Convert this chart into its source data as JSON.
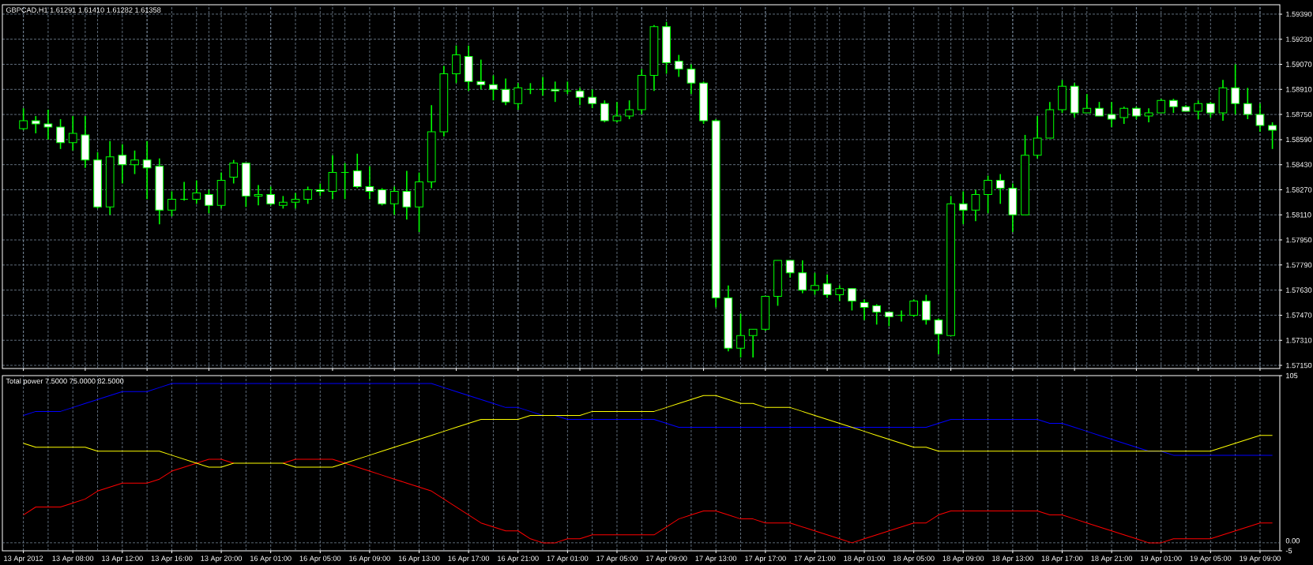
{
  "chart_data": [
    {
      "type": "candlestick",
      "title": "GBPCAD,H1 1.61291 1.61410 1.61282 1.61358",
      "color": "#00ff00",
      "grid": true,
      "categories": [
        null,
        null,
        null,
        null,
        null,
        null,
        null,
        null,
        null,
        null,
        null,
        null,
        null,
        null,
        null,
        null,
        null,
        null,
        null,
        null,
        null,
        null,
        null,
        null,
        null,
        null,
        null,
        null,
        null,
        null,
        null,
        null,
        null,
        null,
        null,
        null,
        null,
        null,
        null,
        null,
        null,
        null,
        null,
        null,
        null,
        null,
        null,
        null,
        null,
        null,
        null,
        null,
        null,
        null,
        null,
        null,
        null,
        null,
        null,
        null,
        null,
        null,
        null,
        null,
        null,
        null,
        null,
        null,
        null,
        null,
        null,
        null,
        null,
        null,
        null,
        null,
        null,
        null,
        null,
        null,
        null,
        null,
        null,
        null,
        null,
        null,
        null,
        null,
        null,
        null,
        null,
        null,
        null,
        null,
        null,
        null,
        null,
        null,
        null,
        null,
        null,
        null
      ],
      "ohlc": [
        [
          1.5866,
          1.5879,
          1.5865,
          1.5871
        ],
        [
          1.5871,
          1.5874,
          1.5863,
          1.5869
        ],
        [
          1.5869,
          1.5878,
          1.5859,
          1.5867
        ],
        [
          1.5867,
          1.5872,
          1.5853,
          1.5857
        ],
        [
          1.5857,
          1.5874,
          1.5852,
          1.5863
        ],
        [
          1.5862,
          1.5874,
          1.5841,
          1.5846
        ],
        [
          1.5846,
          1.5851,
          1.5815,
          1.5816
        ],
        [
          1.5816,
          1.5858,
          1.5811,
          1.5848
        ],
        [
          1.5849,
          1.5856,
          1.5831,
          1.5843
        ],
        [
          1.5843,
          1.5852,
          1.5837,
          1.5846
        ],
        [
          1.5846,
          1.5858,
          1.5821,
          1.5841
        ],
        [
          1.5842,
          1.5847,
          1.5805,
          1.5814
        ],
        [
          1.5814,
          1.5826,
          1.581,
          1.5821
        ],
        [
          1.5821,
          1.5832,
          1.582,
          1.5821
        ],
        [
          1.5821,
          1.5833,
          1.5818,
          1.5825
        ],
        [
          1.5824,
          1.5827,
          1.5812,
          1.5817
        ],
        [
          1.5817,
          1.5838,
          1.5815,
          1.5833
        ],
        [
          1.5835,
          1.5846,
          1.5831,
          1.5844
        ],
        [
          1.5844,
          1.5844,
          1.5816,
          1.5823
        ],
        [
          1.5823,
          1.583,
          1.5817,
          1.5824
        ],
        [
          1.5824,
          1.5829,
          1.5817,
          1.5818
        ],
        [
          1.5817,
          1.5823,
          1.5815,
          1.5819
        ],
        [
          1.5819,
          1.5825,
          1.5815,
          1.5821
        ],
        [
          1.5821,
          1.5829,
          1.5818,
          1.5827
        ],
        [
          1.5827,
          1.5831,
          1.5823,
          1.5826
        ],
        [
          1.5826,
          1.5849,
          1.5821,
          1.5838
        ],
        [
          1.5838,
          1.5844,
          1.5821,
          1.5838
        ],
        [
          1.5839,
          1.585,
          1.5828,
          1.5829
        ],
        [
          1.5829,
          1.5842,
          1.5821,
          1.5826
        ],
        [
          1.5827,
          1.5828,
          1.5817,
          1.5818
        ],
        [
          1.5818,
          1.5829,
          1.5811,
          1.5826
        ],
        [
          1.5826,
          1.5839,
          1.5808,
          1.5816
        ],
        [
          1.5816,
          1.5838,
          1.58,
          1.5832
        ],
        [
          1.5832,
          1.5881,
          1.5828,
          1.5864
        ],
        [
          1.5864,
          1.5906,
          1.5861,
          1.5901
        ],
        [
          1.5901,
          1.5919,
          1.5895,
          1.5913
        ],
        [
          1.5912,
          1.5919,
          1.589,
          1.5896
        ],
        [
          1.5896,
          1.591,
          1.5891,
          1.5894
        ],
        [
          1.5894,
          1.59,
          1.5884,
          1.5891
        ],
        [
          1.5891,
          1.5898,
          1.5881,
          1.5883
        ],
        [
          1.5882,
          1.5895,
          1.5878,
          1.5892
        ],
        [
          1.5891,
          1.5895,
          1.5888,
          1.5891
        ],
        [
          1.5891,
          1.5899,
          1.5887,
          1.5891
        ],
        [
          1.5891,
          1.5896,
          1.5883,
          1.589
        ],
        [
          1.589,
          1.5896,
          1.5888,
          1.589
        ],
        [
          1.589,
          1.5892,
          1.5881,
          1.5886
        ],
        [
          1.5886,
          1.5891,
          1.5879,
          1.5882
        ],
        [
          1.5882,
          1.5884,
          1.587,
          1.5871
        ],
        [
          1.5871,
          1.5883,
          1.587,
          1.5874
        ],
        [
          1.5874,
          1.5884,
          1.5872,
          1.5878
        ],
        [
          1.5878,
          1.5904,
          1.5875,
          1.59
        ],
        [
          1.59,
          1.5932,
          1.589,
          1.5931
        ],
        [
          1.5931,
          1.5934,
          1.5901,
          1.5908
        ],
        [
          1.5909,
          1.5913,
          1.5899,
          1.5904
        ],
        [
          1.5904,
          1.5907,
          1.5888,
          1.5895
        ],
        [
          1.5895,
          1.5896,
          1.5869,
          1.5871
        ],
        [
          1.5871,
          1.5872,
          1.5752,
          1.5758
        ],
        [
          1.5758,
          1.5766,
          1.5724,
          1.5726
        ],
        [
          1.5726,
          1.5748,
          1.572,
          1.5734
        ],
        [
          1.5734,
          1.5738,
          1.572,
          1.5738
        ],
        [
          1.5738,
          1.5759,
          1.5737,
          1.5759
        ],
        [
          1.5759,
          1.5782,
          1.5753,
          1.5782
        ],
        [
          1.5782,
          1.5782,
          1.5771,
          1.5774
        ],
        [
          1.5774,
          1.5782,
          1.5761,
          1.5763
        ],
        [
          1.5763,
          1.5774,
          1.576,
          1.5766
        ],
        [
          1.5767,
          1.5773,
          1.5758,
          1.576
        ],
        [
          1.576,
          1.5766,
          1.5756,
          1.5764
        ],
        [
          1.5764,
          1.5764,
          1.575,
          1.5756
        ],
        [
          1.5755,
          1.5757,
          1.5744,
          1.5752
        ],
        [
          1.5753,
          1.5754,
          1.5741,
          1.5749
        ],
        [
          1.5749,
          1.5749,
          1.574,
          1.5746
        ],
        [
          1.5747,
          1.575,
          1.5743,
          1.5747
        ],
        [
          1.5747,
          1.5757,
          1.5746,
          1.5756
        ],
        [
          1.5756,
          1.576,
          1.5741,
          1.5744
        ],
        [
          1.5744,
          1.5745,
          1.5722,
          1.5735
        ],
        [
          1.5734,
          1.5823,
          1.5734,
          1.5818
        ],
        [
          1.5818,
          1.5826,
          1.5805,
          1.5814
        ],
        [
          1.5814,
          1.5827,
          1.5807,
          1.5824
        ],
        [
          1.5824,
          1.5836,
          1.5812,
          1.5833
        ],
        [
          1.5833,
          1.5837,
          1.5818,
          1.5828
        ],
        [
          1.5828,
          1.5831,
          1.58,
          1.5811
        ],
        [
          1.5811,
          1.5862,
          1.5811,
          1.5849
        ],
        [
          1.5849,
          1.5874,
          1.5847,
          1.586
        ],
        [
          1.586,
          1.5883,
          1.586,
          1.5878
        ],
        [
          1.5878,
          1.5897,
          1.5876,
          1.5893
        ],
        [
          1.5893,
          1.5895,
          1.5873,
          1.5876
        ],
        [
          1.5876,
          1.5888,
          1.5876,
          1.5879
        ],
        [
          1.5879,
          1.5883,
          1.5874,
          1.5874
        ],
        [
          1.5875,
          1.5883,
          1.5867,
          1.5872
        ],
        [
          1.5873,
          1.588,
          1.5869,
          1.5879
        ],
        [
          1.5879,
          1.588,
          1.5872,
          1.5874
        ],
        [
          1.5874,
          1.5879,
          1.587,
          1.5876
        ],
        [
          1.5876,
          1.5885,
          1.5876,
          1.5884
        ],
        [
          1.5884,
          1.5885,
          1.5876,
          1.588
        ],
        [
          1.588,
          1.5881,
          1.5877,
          1.5877
        ],
        [
          1.5877,
          1.5884,
          1.5872,
          1.5882
        ],
        [
          1.5882,
          1.5883,
          1.5873,
          1.5876
        ],
        [
          1.5876,
          1.5897,
          1.5871,
          1.5892
        ],
        [
          1.5892,
          1.5907,
          1.5875,
          1.5882
        ],
        [
          1.5882,
          1.5892,
          1.5872,
          1.5875
        ],
        [
          1.5875,
          1.5882,
          1.5864,
          1.5868
        ],
        [
          1.5868,
          1.587,
          1.5853,
          1.5865
        ]
      ],
      "ylim": [
        1.5713,
        1.5945
      ],
      "yticks": [
        {
          "value": 1.5715,
          "label": "1.57150"
        },
        {
          "value": 1.5731,
          "label": "1.57310"
        },
        {
          "value": 1.5747,
          "label": "1.57470"
        },
        {
          "value": 1.5763,
          "label": "1.57630"
        },
        {
          "value": 1.5779,
          "label": "1.57790"
        },
        {
          "value": 1.5795,
          "label": "1.57950"
        },
        {
          "value": 1.5811,
          "label": "1.58110"
        },
        {
          "value": 1.5827,
          "label": "1.58270"
        },
        {
          "value": 1.5843,
          "label": "1.58430"
        },
        {
          "value": 1.5859,
          "label": "1.58590"
        },
        {
          "value": 1.5875,
          "label": "1.58750"
        },
        {
          "value": 1.5891,
          "label": "1.58910"
        },
        {
          "value": 1.5907,
          "label": "1.59070"
        },
        {
          "value": 1.5923,
          "label": "1.59230"
        },
        {
          "value": 1.5939,
          "label": "1.59390"
        }
      ]
    },
    {
      "type": "line",
      "title": "Total power 7.5000 75.0000 82.5000",
      "grid": "x",
      "categories": [
        "13 Apr 2012",
        null,
        null,
        null,
        "13 Apr 08:00",
        null,
        null,
        null,
        "13 Apr 12:00",
        null,
        null,
        null,
        "13 Apr 16:00",
        null,
        null,
        null,
        "13 Apr 20:00",
        null,
        null,
        null,
        "16 Apr 01:00",
        null,
        null,
        null,
        "16 Apr 05:00",
        null,
        null,
        null,
        "16 Apr 09:00",
        null,
        null,
        null,
        "16 Apr 13:00",
        null,
        null,
        null,
        "16 Apr 17:00",
        null,
        null,
        null,
        "16 Apr 21:00",
        null,
        null,
        null,
        "17 Apr 01:00",
        null,
        null,
        null,
        "17 Apr 05:00",
        null,
        null,
        null,
        "17 Apr 09:00",
        null,
        null,
        null,
        "17 Apr 13:00",
        null,
        null,
        null,
        "17 Apr 17:00",
        null,
        null,
        null,
        "17 Apr 21:00",
        null,
        null,
        null,
        "18 Apr 01:00",
        null,
        null,
        null,
        "18 Apr 05:00",
        null,
        null,
        null,
        "18 Apr 09:00",
        null,
        null,
        null,
        "18 Apr 13:00",
        null,
        null,
        null,
        "18 Apr 17:00",
        null,
        null,
        null,
        "18 Apr 21:00",
        null,
        null,
        null,
        "19 Apr 01:00",
        null,
        null,
        null,
        "19 Apr 05:00",
        null,
        null,
        null,
        "19 Apr 09:00",
        null
      ],
      "series": [
        {
          "color": "#0000ff",
          "values": [
            80,
            82.5,
            82.5,
            82.5,
            85,
            87.5,
            90,
            92.5,
            95,
            95,
            95,
            97.5,
            100,
            100,
            100,
            100,
            100,
            100,
            100,
            100,
            100,
            100,
            100,
            100,
            100,
            100,
            100,
            100,
            100,
            100,
            100,
            100,
            100,
            100,
            97.5,
            95,
            92.5,
            90,
            87.5,
            85,
            85,
            82.5,
            80,
            80,
            77.5,
            77.5,
            77.5,
            77.5,
            77.5,
            77.5,
            77.5,
            77.5,
            75,
            72.5,
            72.5,
            72.5,
            72.5,
            72.5,
            72.5,
            72.5,
            72.5,
            72.5,
            72.5,
            72.5,
            72.5,
            72.5,
            72.5,
            72.5,
            72.5,
            72.5,
            72.5,
            72.5,
            72.5,
            72.5,
            75,
            77.5,
            77.5,
            77.5,
            77.5,
            77.5,
            77.5,
            77.5,
            77.5,
            75,
            75,
            72.5,
            70,
            67.5,
            65,
            62.5,
            60,
            57.5,
            57.5,
            55,
            55,
            55,
            55,
            55,
            55,
            55,
            55,
            55
          ]
        },
        {
          "color": "#ff0000",
          "values": [
            17.5,
            22.5,
            22.5,
            22.5,
            25,
            27.5,
            32.5,
            35,
            37.5,
            37.5,
            37.5,
            40,
            45,
            47.5,
            50,
            52.5,
            52.5,
            50,
            null,
            null,
            null,
            50,
            52.5,
            52.5,
            52.5,
            52.5,
            50,
            47.5,
            45,
            42.5,
            40,
            37.5,
            35,
            32.5,
            27.5,
            22.5,
            17.5,
            12.5,
            10,
            7.5,
            7.5,
            2.5,
            0,
            0,
            2.5,
            2.5,
            5,
            5,
            5,
            5,
            5,
            5,
            10,
            15,
            17.5,
            20,
            20,
            17.5,
            15,
            15,
            12.5,
            12.5,
            12.5,
            10,
            7.5,
            5,
            2.5,
            0,
            2.5,
            5,
            7.5,
            10,
            12.5,
            12.5,
            17.5,
            20,
            20,
            20,
            20,
            20,
            20,
            20,
            20,
            17.5,
            17.5,
            15,
            12.5,
            10,
            7.5,
            5,
            2.5,
            0,
            0,
            2.5,
            2.5,
            2.5,
            2.5,
            5,
            7.5,
            10,
            12.5,
            12.5
          ]
        },
        {
          "color": "#ffff00",
          "values": [
            62.5,
            60,
            60,
            60,
            60,
            60,
            57.5,
            57.5,
            57.5,
            57.5,
            57.5,
            57.5,
            55,
            52.5,
            50,
            47.5,
            47.5,
            50,
            50,
            50,
            50,
            50,
            47.5,
            47.5,
            47.5,
            47.5,
            50,
            52.5,
            55,
            57.5,
            60,
            62.5,
            65,
            67.5,
            70,
            72.5,
            75,
            77.5,
            77.5,
            77.5,
            77.5,
            80,
            80,
            80,
            80,
            80,
            82.5,
            82.5,
            82.5,
            82.5,
            82.5,
            82.5,
            85,
            87.5,
            90,
            92.5,
            92.5,
            90,
            87.5,
            87.5,
            85,
            85,
            85,
            82.5,
            80,
            77.5,
            75,
            72.5,
            70,
            67.5,
            65,
            62.5,
            60,
            60,
            57.5,
            57.5,
            57.5,
            57.5,
            57.5,
            57.5,
            57.5,
            57.5,
            57.5,
            57.5,
            57.5,
            57.5,
            57.5,
            57.5,
            57.5,
            57.5,
            57.5,
            57.5,
            57.5,
            57.5,
            57.5,
            57.5,
            57.5,
            60,
            62.5,
            65,
            67.5,
            67.5
          ]
        }
      ],
      "ylim": [
        -5,
        105
      ],
      "yticks": [
        -5,
        105
      ],
      "ref_lines": [
        {
          "axis": "y",
          "value": 0,
          "label": "0.00",
          "color": "#778899",
          "line_style": "dashed"
        }
      ]
    }
  ]
}
